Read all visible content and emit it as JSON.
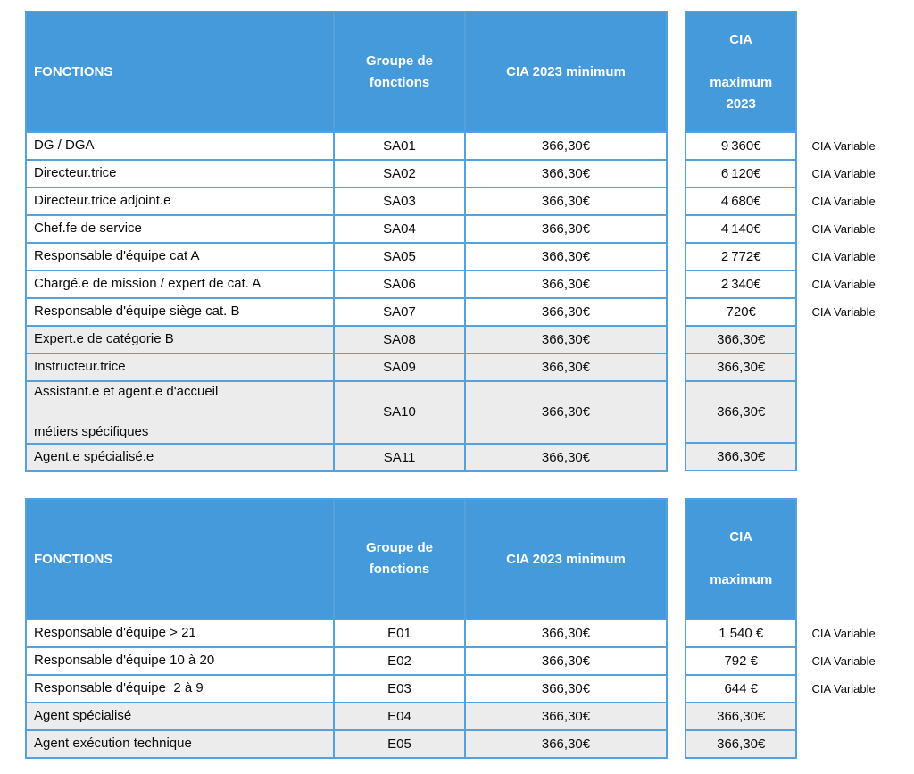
{
  "colors": {
    "header_bg": "#459ADB",
    "border": "#54A1DC",
    "shaded_row_bg": "#ECECEC",
    "header_text": "#FFFFFF",
    "body_text": "#0B0B0B"
  },
  "variable_label": "CIA Variable",
  "tables": [
    {
      "headers": {
        "fonctions": "FONCTIONS",
        "groupe": "Groupe de\nfonctions",
        "min": "CIA 2023 minimum",
        "max": "CIA\n\nmaximum\n2023"
      },
      "rows": [
        {
          "fonction": "DG / DGA",
          "groupe": "SA01",
          "min": "366,30€",
          "max": "9 360€",
          "variable": "CIA Variable",
          "shaded": false,
          "tall": false
        },
        {
          "fonction": "Directeur.trice",
          "groupe": "SA02",
          "min": "366,30€",
          "max": "6 120€",
          "variable": "CIA Variable",
          "shaded": false,
          "tall": false
        },
        {
          "fonction": "Directeur.trice adjoint.e",
          "groupe": "SA03",
          "min": "366,30€",
          "max": "4 680€",
          "variable": "CIA Variable",
          "shaded": false,
          "tall": false
        },
        {
          "fonction": "Chef.fe de service",
          "groupe": "SA04",
          "min": "366,30€",
          "max": "4 140€",
          "variable": "CIA Variable",
          "shaded": false,
          "tall": false
        },
        {
          "fonction": "Responsable d'équipe cat A",
          "groupe": "SA05",
          "min": "366,30€",
          "max": "2 772€",
          "variable": "CIA Variable",
          "shaded": false,
          "tall": false
        },
        {
          "fonction": "Chargé.e de mission / expert de cat. A",
          "groupe": "SA06",
          "min": "366,30€",
          "max": "2 340€",
          "variable": "CIA Variable",
          "shaded": false,
          "tall": false
        },
        {
          "fonction": "Responsable d'équipe siège cat. B",
          "groupe": "SA07",
          "min": "366,30€",
          "max": "720€",
          "variable": "CIA Variable",
          "shaded": false,
          "tall": false
        },
        {
          "fonction": "Expert.e de catégorie B",
          "groupe": "SA08",
          "min": "366,30€",
          "max": "366,30€",
          "variable": "",
          "shaded": true,
          "tall": false
        },
        {
          "fonction": "Instructeur.trice",
          "groupe": "SA09",
          "min": "366,30€",
          "max": "366,30€",
          "variable": "",
          "shaded": true,
          "tall": false
        },
        {
          "fonction": "Assistant.e et agent.e d'accueil\n\nmétiers spécifiques",
          "groupe": "SA10",
          "min": "366,30€",
          "max": "366,30€",
          "variable": "",
          "shaded": true,
          "tall": true
        },
        {
          "fonction": "Agent.e spécialisé.e",
          "groupe": "SA11",
          "min": "366,30€",
          "max": "366,30€",
          "variable": "",
          "shaded": true,
          "tall": false
        }
      ]
    },
    {
      "headers": {
        "fonctions": "FONCTIONS",
        "groupe": "Groupe de\nfonctions",
        "min": "CIA 2023 minimum",
        "max": "CIA\n\nmaximum"
      },
      "rows": [
        {
          "fonction": "Responsable d'équipe > 21",
          "groupe": "E01",
          "min": "366,30€",
          "max": "1 540 €",
          "variable": "CIA Variable",
          "shaded": false,
          "tall": false
        },
        {
          "fonction": "Responsable d'équipe 10 à 20",
          "groupe": "E02",
          "min": "366,30€",
          "max": "792 €",
          "variable": "CIA Variable",
          "shaded": false,
          "tall": false
        },
        {
          "fonction": "Responsable d'équipe  2 à 9",
          "groupe": "E03",
          "min": "366,30€",
          "max": "644 €",
          "variable": "CIA Variable",
          "shaded": false,
          "tall": false
        },
        {
          "fonction": "Agent spécialisé",
          "groupe": "E04",
          "min": "366,30€",
          "max": "366,30€",
          "variable": "",
          "shaded": true,
          "tall": false
        },
        {
          "fonction": "Agent exécution technique",
          "groupe": "E05",
          "min": "366,30€",
          "max": "366,30€",
          "variable": "",
          "shaded": true,
          "tall": false
        }
      ]
    }
  ]
}
